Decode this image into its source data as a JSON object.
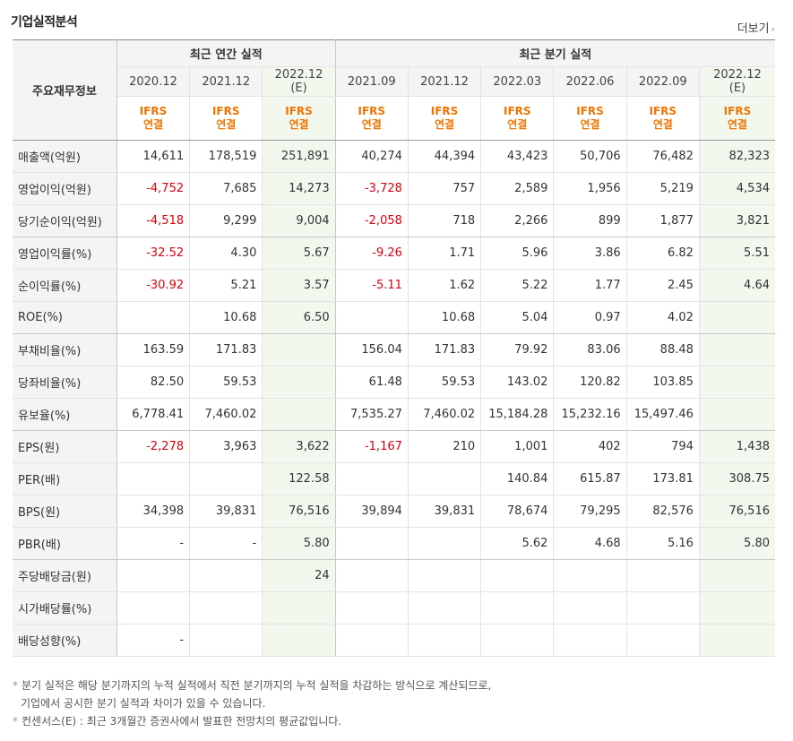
{
  "title": "기업실적분석",
  "more_label": "더보기",
  "header": {
    "row_label": "주요재무정보",
    "annual_group": "최근 연간 실적",
    "quarterly_group": "최근 분기 실적",
    "annual_periods": [
      {
        "label": "2020.12",
        "est": ""
      },
      {
        "label": "2021.12",
        "est": ""
      },
      {
        "label": "2022.12",
        "est": "(E)"
      }
    ],
    "quarterly_periods": [
      {
        "label": "2021.09",
        "est": ""
      },
      {
        "label": "2021.12",
        "est": ""
      },
      {
        "label": "2022.03",
        "est": ""
      },
      {
        "label": "2022.06",
        "est": ""
      },
      {
        "label": "2022.09",
        "est": ""
      },
      {
        "label": "2022.12",
        "est": "(E)"
      }
    ],
    "ifrs_line1": "IFRS",
    "ifrs_line2": "연결"
  },
  "rows": [
    {
      "label": "매출액(억원)",
      "values": [
        "14,611",
        "178,519",
        "251,891",
        "40,274",
        "44,394",
        "43,423",
        "50,706",
        "76,482",
        "82,323"
      ],
      "group_end": false
    },
    {
      "label": "영업이익(억원)",
      "values": [
        "-4,752",
        "7,685",
        "14,273",
        "-3,728",
        "757",
        "2,589",
        "1,956",
        "5,219",
        "4,534"
      ],
      "group_end": false
    },
    {
      "label": "당기순이익(억원)",
      "values": [
        "-4,518",
        "9,299",
        "9,004",
        "-2,058",
        "718",
        "2,266",
        "899",
        "1,877",
        "3,821"
      ],
      "group_end": true
    },
    {
      "label": "영업이익률(%)",
      "values": [
        "-32.52",
        "4.30",
        "5.67",
        "-9.26",
        "1.71",
        "5.96",
        "3.86",
        "6.82",
        "5.51"
      ],
      "group_end": false
    },
    {
      "label": "순이익률(%)",
      "values": [
        "-30.92",
        "5.21",
        "3.57",
        "-5.11",
        "1.62",
        "5.22",
        "1.77",
        "2.45",
        "4.64"
      ],
      "group_end": false
    },
    {
      "label": "ROE(%)",
      "values": [
        "",
        "10.68",
        "6.50",
        "",
        "10.68",
        "5.04",
        "0.97",
        "4.02",
        ""
      ],
      "group_end": true
    },
    {
      "label": "부채비율(%)",
      "values": [
        "163.59",
        "171.83",
        "",
        "156.04",
        "171.83",
        "79.92",
        "83.06",
        "88.48",
        ""
      ],
      "group_end": false
    },
    {
      "label": "당좌비율(%)",
      "values": [
        "82.50",
        "59.53",
        "",
        "61.48",
        "59.53",
        "143.02",
        "120.82",
        "103.85",
        ""
      ],
      "group_end": false
    },
    {
      "label": "유보율(%)",
      "values": [
        "6,778.41",
        "7,460.02",
        "",
        "7,535.27",
        "7,460.02",
        "15,184.28",
        "15,232.16",
        "15,497.46",
        ""
      ],
      "group_end": true
    },
    {
      "label": "EPS(원)",
      "values": [
        "-2,278",
        "3,963",
        "3,622",
        "-1,167",
        "210",
        "1,001",
        "402",
        "794",
        "1,438"
      ],
      "group_end": false
    },
    {
      "label": "PER(배)",
      "values": [
        "",
        "",
        "122.58",
        "",
        "",
        "140.84",
        "615.87",
        "173.81",
        "308.75"
      ],
      "group_end": false
    },
    {
      "label": "BPS(원)",
      "values": [
        "34,398",
        "39,831",
        "76,516",
        "39,894",
        "39,831",
        "78,674",
        "79,295",
        "82,576",
        "76,516"
      ],
      "group_end": false
    },
    {
      "label": "PBR(배)",
      "values": [
        "-",
        "-",
        "5.80",
        "",
        "",
        "5.62",
        "4.68",
        "5.16",
        "5.80"
      ],
      "group_end": true
    },
    {
      "label": "주당배당금(원)",
      "values": [
        "",
        "",
        "24",
        "",
        "",
        "",
        "",
        "",
        ""
      ],
      "group_end": false
    },
    {
      "label": "시가배당률(%)",
      "values": [
        "",
        "",
        "",
        "",
        "",
        "",
        "",
        "",
        ""
      ],
      "group_end": false
    },
    {
      "label": "배당성향(%)",
      "values": [
        "-",
        "",
        "",
        "",
        "",
        "",
        "",
        "",
        ""
      ],
      "group_end": false
    }
  ],
  "notes": [
    "분기 실적은 해당 분기까지의 누적 실적에서 직전 분기까지의 누적 실적을 차감하는 방식으로 계산되므로,",
    "기업에서 공시한 분기 실적과 차이가 있을 수 있습니다.",
    "컨센서스(E) : 최근 3개월간 증권사에서 발표한 전망치의 평균값입니다."
  ]
}
